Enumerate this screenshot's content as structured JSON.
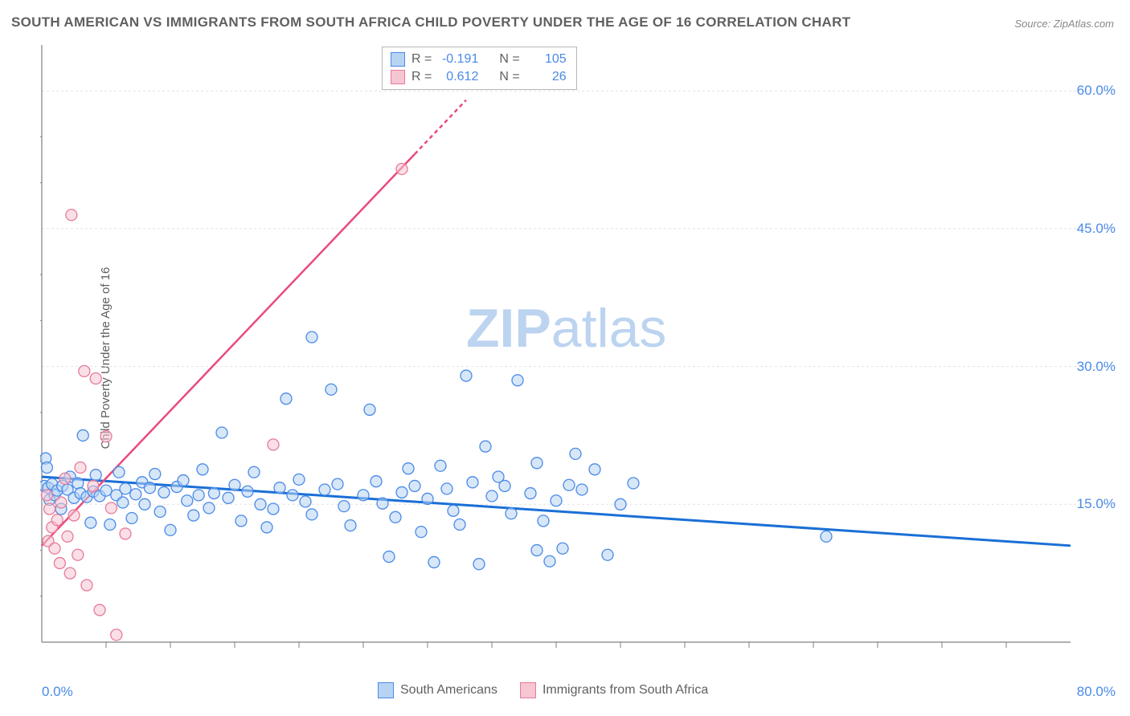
{
  "title": "SOUTH AMERICAN VS IMMIGRANTS FROM SOUTH AFRICA CHILD POVERTY UNDER THE AGE OF 16 CORRELATION CHART",
  "source": "Source: ZipAtlas.com",
  "ylabel": "Child Poverty Under the Age of 16",
  "watermark_bold": "ZIP",
  "watermark_rest": "atlas",
  "chart": {
    "type": "scatter-correlation",
    "background_color": "#ffffff",
    "grid_color": "#e2e2e2",
    "axis_color": "#808080",
    "tick_color": "#808080",
    "xlim": [
      0,
      80
    ],
    "ylim": [
      0,
      65
    ],
    "xtick_labels": [
      {
        "v": 0,
        "label": "0.0%"
      },
      {
        "v": 80,
        "label": "80.0%"
      }
    ],
    "ytick_labels": [
      {
        "v": 15,
        "label": "15.0%"
      },
      {
        "v": 30,
        "label": "30.0%"
      },
      {
        "v": 45,
        "label": "45.0%"
      },
      {
        "v": 60,
        "label": "60.0%"
      }
    ],
    "gridlines_y": [
      15,
      30,
      45,
      60
    ],
    "xtick_marks": [
      5,
      10,
      15,
      20,
      25,
      30,
      35,
      40,
      45,
      50,
      55,
      60,
      65,
      70,
      75
    ],
    "ytick_marks": [
      5,
      10,
      20,
      25,
      35,
      40,
      50,
      55
    ],
    "legend_top": {
      "r_label": "R =",
      "n_label": "N =",
      "rows": [
        {
          "swatch_fill": "#b7d3f2",
          "swatch_border": "#4a8ae8",
          "r": "-0.191",
          "n": "105"
        },
        {
          "swatch_fill": "#f6c6d2",
          "swatch_border": "#e77a9a",
          "r": "0.612",
          "n": "26"
        }
      ]
    },
    "legend_bottom": [
      {
        "swatch_fill": "#b7d3f2",
        "swatch_border": "#4a8ae8",
        "label": "South Americans"
      },
      {
        "swatch_fill": "#f6c6d2",
        "swatch_border": "#e77a9a",
        "label": "Immigrants from South Africa"
      }
    ],
    "series": [
      {
        "name": "south_americans",
        "fill": "#b7d3f2",
        "stroke": "#4a8ae8",
        "fill_opacity": 0.55,
        "radius": 7,
        "trend": {
          "x1": 0,
          "y1": 18,
          "x2": 80,
          "y2": 10.5,
          "color": "#1a6fd6",
          "width": 3,
          "dash": "none"
        },
        "points": [
          [
            0.2,
            17
          ],
          [
            0.5,
            16.8
          ],
          [
            0.3,
            20
          ],
          [
            0.4,
            19
          ],
          [
            0.6,
            15.5
          ],
          [
            1,
            16
          ],
          [
            0.8,
            17.2
          ],
          [
            1.2,
            16.5
          ],
          [
            1.5,
            14.5
          ],
          [
            1.6,
            17
          ],
          [
            2,
            16.6
          ],
          [
            2.2,
            18
          ],
          [
            2.5,
            15.7
          ],
          [
            2.8,
            17.3
          ],
          [
            3,
            16.2
          ],
          [
            3.2,
            22.5
          ],
          [
            3.5,
            15.8
          ],
          [
            3.8,
            13
          ],
          [
            4,
            16.4
          ],
          [
            4.2,
            18.2
          ],
          [
            4.5,
            15.9
          ],
          [
            5,
            16.5
          ],
          [
            5.3,
            12.8
          ],
          [
            5.8,
            16
          ],
          [
            6,
            18.5
          ],
          [
            6.3,
            15.2
          ],
          [
            6.5,
            16.7
          ],
          [
            7,
            13.5
          ],
          [
            7.3,
            16.1
          ],
          [
            7.8,
            17.4
          ],
          [
            8,
            15
          ],
          [
            8.4,
            16.8
          ],
          [
            8.8,
            18.3
          ],
          [
            9.2,
            14.2
          ],
          [
            9.5,
            16.3
          ],
          [
            10,
            12.2
          ],
          [
            10.5,
            16.9
          ],
          [
            11,
            17.6
          ],
          [
            11.3,
            15.4
          ],
          [
            11.8,
            13.8
          ],
          [
            12.2,
            16
          ],
          [
            12.5,
            18.8
          ],
          [
            13,
            14.6
          ],
          [
            13.4,
            16.2
          ],
          [
            14,
            22.8
          ],
          [
            14.5,
            15.7
          ],
          [
            15,
            17.1
          ],
          [
            15.5,
            13.2
          ],
          [
            16,
            16.4
          ],
          [
            16.5,
            18.5
          ],
          [
            17,
            15
          ],
          [
            17.5,
            12.5
          ],
          [
            18,
            14.5
          ],
          [
            18.5,
            16.8
          ],
          [
            19,
            26.5
          ],
          [
            19.5,
            16
          ],
          [
            20,
            17.7
          ],
          [
            20.5,
            15.3
          ],
          [
            21,
            13.9
          ],
          [
            21,
            33.2
          ],
          [
            22,
            16.6
          ],
          [
            22.5,
            27.5
          ],
          [
            23,
            17.2
          ],
          [
            23.5,
            14.8
          ],
          [
            24,
            12.7
          ],
          [
            25,
            16
          ],
          [
            25.5,
            25.3
          ],
          [
            26,
            17.5
          ],
          [
            26.5,
            15.1
          ],
          [
            27,
            9.3
          ],
          [
            27.5,
            13.6
          ],
          [
            28,
            16.3
          ],
          [
            28.5,
            18.9
          ],
          [
            29,
            17
          ],
          [
            29.5,
            12
          ],
          [
            30,
            15.6
          ],
          [
            30.5,
            8.7
          ],
          [
            31,
            19.2
          ],
          [
            31.5,
            16.7
          ],
          [
            32,
            14.3
          ],
          [
            32.5,
            12.8
          ],
          [
            33,
            29
          ],
          [
            33.5,
            17.4
          ],
          [
            34,
            8.5
          ],
          [
            34.5,
            21.3
          ],
          [
            35,
            15.9
          ],
          [
            35.5,
            18
          ],
          [
            36,
            17
          ],
          [
            36.5,
            14
          ],
          [
            37,
            28.5
          ],
          [
            38,
            16.2
          ],
          [
            38.5,
            19.5
          ],
          [
            39,
            13.2
          ],
          [
            39.5,
            8.8
          ],
          [
            40,
            15.4
          ],
          [
            41,
            17.1
          ],
          [
            41.5,
            20.5
          ],
          [
            42,
            16.6
          ],
          [
            43,
            18.8
          ],
          [
            44,
            9.5
          ],
          [
            45,
            15
          ],
          [
            46,
            17.3
          ],
          [
            61,
            11.5
          ],
          [
            38.5,
            10
          ],
          [
            40.5,
            10.2
          ]
        ]
      },
      {
        "name": "immigrants_sa",
        "fill": "#f6c6d2",
        "stroke": "#e77a9a",
        "fill_opacity": 0.55,
        "radius": 7,
        "trend": {
          "x1": 0,
          "y1": 10.5,
          "x2": 33,
          "y2": 59,
          "color": "#e94b7c",
          "width": 2.5,
          "dash_after_x": 29
        },
        "points": [
          [
            0.5,
            11
          ],
          [
            0.8,
            12.5
          ],
          [
            0.6,
            14.5
          ],
          [
            0.4,
            16
          ],
          [
            1,
            10.2
          ],
          [
            1.2,
            13.3
          ],
          [
            1.4,
            8.6
          ],
          [
            1.5,
            15.2
          ],
          [
            1.8,
            17.8
          ],
          [
            2,
            11.5
          ],
          [
            2.2,
            7.5
          ],
          [
            2.5,
            13.8
          ],
          [
            2.8,
            9.5
          ],
          [
            3,
            19
          ],
          [
            3.3,
            29.5
          ],
          [
            3.5,
            6.2
          ],
          [
            4,
            17
          ],
          [
            4.2,
            28.7
          ],
          [
            4.5,
            3.5
          ],
          [
            5,
            22.4
          ],
          [
            5.4,
            14.6
          ],
          [
            2.3,
            46.5
          ],
          [
            5.8,
            0.8
          ],
          [
            18,
            21.5
          ],
          [
            28,
            51.5
          ],
          [
            6.5,
            11.8
          ]
        ]
      }
    ]
  }
}
